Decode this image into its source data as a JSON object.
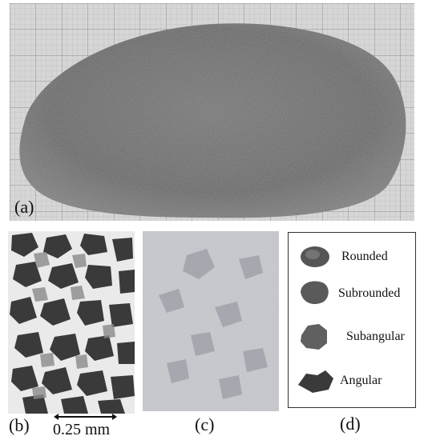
{
  "panels": {
    "a": {
      "label": "(a)"
    },
    "b": {
      "label": "(b)",
      "scale_bar": "0.25 mm"
    },
    "c": {
      "label": "(c)"
    },
    "d": {
      "label": "(d)",
      "shapes": [
        {
          "name": "rounded",
          "label": "Rounded"
        },
        {
          "name": "subrounded",
          "label": "Subrounded"
        },
        {
          "name": "subangular",
          "label": "Subangular"
        },
        {
          "name": "angular",
          "label": "Angular"
        }
      ]
    }
  }
}
